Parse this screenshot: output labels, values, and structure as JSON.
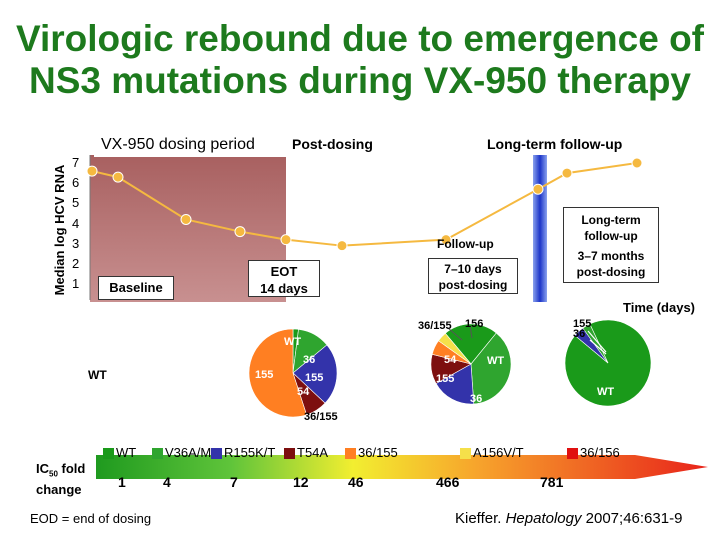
{
  "title_line1": "Virologic rebound due to emergence of",
  "title_line2": "NS3 mutations during VX-950 therapy",
  "colors": {
    "title": "#1d7a1d",
    "dosing_band": "#b07070",
    "line": "#f5b940",
    "wt": "#1a9a1a",
    "v36": "#2fa52f",
    "r155": "#3333aa",
    "t54": "#7d0f0f",
    "m36_155": "#ff7f22",
    "a156": "#f5e04a",
    "m36_156": "#e01010"
  },
  "chart_data": [
    {
      "type": "line",
      "ylabel": "Median log HCV RNA",
      "xlabel": "Time (days)",
      "yticks": [
        "1",
        "2",
        "3",
        "4",
        "5",
        "6",
        "7"
      ],
      "ylim": [
        1,
        7
      ],
      "series": [
        {
          "points": [
            6.6,
            6.3,
            4.2,
            3.6,
            3.2,
            2.9,
            3.2,
            5.7,
            6.5,
            7.0
          ]
        }
      ],
      "annotations": {
        "dosing_period": "VX-950 dosing period",
        "post_dosing": "Post-dosing",
        "long_term_header": "Long-term follow-up",
        "baseline": "Baseline",
        "eot_line1": "EOT",
        "eot_line2": "14 days",
        "followup_label": "Follow-up",
        "followup_line1": "7–10 days",
        "followup_line2": "post-dosing",
        "longterm_line1": "Long-term",
        "longterm_line2": "follow-up",
        "longterm_line3": "3–7 months",
        "longterm_line4": "post-dosing"
      }
    },
    {
      "type": "pie",
      "name": "EOT",
      "slices": [
        {
          "label": "WT",
          "value": 2,
          "color": "#1a9a1a"
        },
        {
          "label": "36",
          "value": 12,
          "color": "#2fa52f"
        },
        {
          "label": "155",
          "value": 23,
          "color": "#3333aa"
        },
        {
          "label": "54",
          "value": 8,
          "color": "#7d0f0f"
        },
        {
          "label": "36/155",
          "value": 55,
          "color": "#ff7f22"
        }
      ],
      "labels": {
        "wt": "WT",
        "m36": "36",
        "m155": "155",
        "m54": "54",
        "m36_155": "36/155",
        "left_wt": "WT"
      }
    },
    {
      "type": "pie",
      "name": "Follow-up",
      "slices": [
        {
          "label": "WT",
          "value": 22,
          "color": "#1a9a1a"
        },
        {
          "label": "36",
          "value": 38,
          "color": "#2fa52f"
        },
        {
          "label": "155",
          "value": 18,
          "color": "#3333aa"
        },
        {
          "label": "54",
          "value": 12,
          "color": "#7d0f0f"
        },
        {
          "label": "36/155",
          "value": 6,
          "color": "#ff7f22"
        },
        {
          "label": "156",
          "value": 4,
          "color": "#f5e04a"
        }
      ],
      "labels": {
        "m36_155": "36/155",
        "m156": "156",
        "m54": "54",
        "wt": "WT",
        "m155": "155",
        "m36": "36"
      }
    },
    {
      "type": "pie",
      "name": "Long-term follow-up",
      "slices": [
        {
          "label": "WT",
          "value": 93,
          "color": "#1a9a1a"
        },
        {
          "label": "155",
          "value": 4,
          "color": "#3333aa"
        },
        {
          "label": "36",
          "value": 3,
          "color": "#2fa52f"
        }
      ],
      "labels": {
        "m155": "155",
        "m36": "36",
        "wt": "WT"
      }
    },
    {
      "type": "table",
      "row_label_line1": "IC",
      "row_label_sub": "50",
      "row_label_line1b": " fold",
      "row_label_line2": "change",
      "legend": [
        {
          "label": "WT",
          "color": "#1a9a1a"
        },
        {
          "label": "V36A/M",
          "color": "#2fa52f"
        },
        {
          "label": "R155K/T",
          "color": "#3333aa"
        },
        {
          "label": "T54A",
          "color": "#7d0f0f"
        },
        {
          "label": "36/155",
          "color": "#ff7f22"
        },
        {
          "label": "A156V/T",
          "color": "#f5e04a"
        },
        {
          "label": "36/156",
          "color": "#e01010"
        }
      ],
      "values": [
        "1",
        "4",
        "7",
        "12",
        "46",
        "466",
        "781"
      ]
    }
  ],
  "footnote": "EOD = end of dosing",
  "citation_author": "Kieffer.",
  "citation_journal": "Hepatology",
  "citation_rest": "2007;46:631-9"
}
